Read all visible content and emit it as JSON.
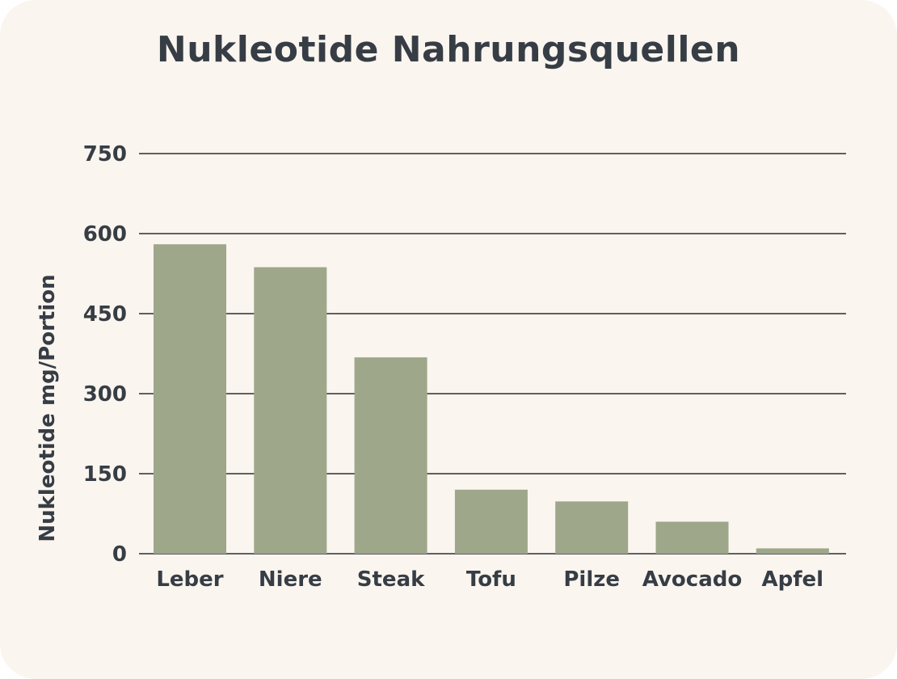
{
  "chart_data": {
    "type": "bar",
    "title": "Nukleotide Nahrungsquellen",
    "xlabel": "",
    "ylabel": "Nukleotide mg/Portion",
    "categories": [
      "Leber",
      "Niere",
      "Steak",
      "Tofu",
      "Pilze",
      "Avocado",
      "Apfel"
    ],
    "values": [
      580,
      537,
      368,
      120,
      98,
      60,
      10
    ],
    "ylim": [
      0,
      750
    ],
    "yticks": [
      0,
      150,
      300,
      450,
      600,
      750
    ],
    "grid": true,
    "bar_color": "#9EA78A",
    "grid_color": "#2B2F36",
    "background_color": "#FAF5EF"
  }
}
